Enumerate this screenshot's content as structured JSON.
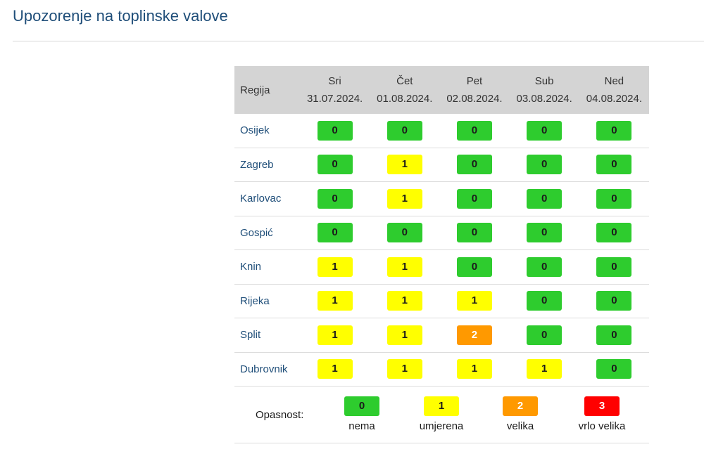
{
  "page": {
    "title": "Upozorenje na toplinske valove"
  },
  "table": {
    "region_header": "Regija",
    "days": [
      {
        "name": "Sri",
        "date": "31.07.2024."
      },
      {
        "name": "Čet",
        "date": "01.08.2024."
      },
      {
        "name": "Pet",
        "date": "02.08.2024."
      },
      {
        "name": "Sub",
        "date": "03.08.2024."
      },
      {
        "name": "Ned",
        "date": "04.08.2024."
      }
    ],
    "rows": [
      {
        "region": "Osijek",
        "levels": [
          "0",
          "0",
          "0",
          "0",
          "0"
        ]
      },
      {
        "region": "Zagreb",
        "levels": [
          "0",
          "1",
          "0",
          "0",
          "0"
        ]
      },
      {
        "region": "Karlovac",
        "levels": [
          "0",
          "1",
          "0",
          "0",
          "0"
        ]
      },
      {
        "region": "Gospić",
        "levels": [
          "0",
          "0",
          "0",
          "0",
          "0"
        ]
      },
      {
        "region": "Knin",
        "levels": [
          "1",
          "1",
          "0",
          "0",
          "0"
        ]
      },
      {
        "region": "Rijeka",
        "levels": [
          "1",
          "1",
          "1",
          "0",
          "0"
        ]
      },
      {
        "region": "Split",
        "levels": [
          "1",
          "1",
          "2",
          "0",
          "0"
        ]
      },
      {
        "region": "Dubrovnik",
        "levels": [
          "1",
          "1",
          "1",
          "1",
          "0"
        ]
      }
    ]
  },
  "legend": {
    "label": "Opasnost:",
    "items": [
      {
        "level": "0",
        "text": "nema"
      },
      {
        "level": "1",
        "text": "umjerena"
      },
      {
        "level": "2",
        "text": "velika"
      },
      {
        "level": "3",
        "text": "vrlo velika"
      }
    ]
  },
  "colors": {
    "level_0": "#2ecc2e",
    "level_1": "#ffff00",
    "level_2": "#ff9900",
    "level_3": "#ff0000",
    "title": "#1f4e79",
    "header_bg": "#d4d4d4"
  }
}
